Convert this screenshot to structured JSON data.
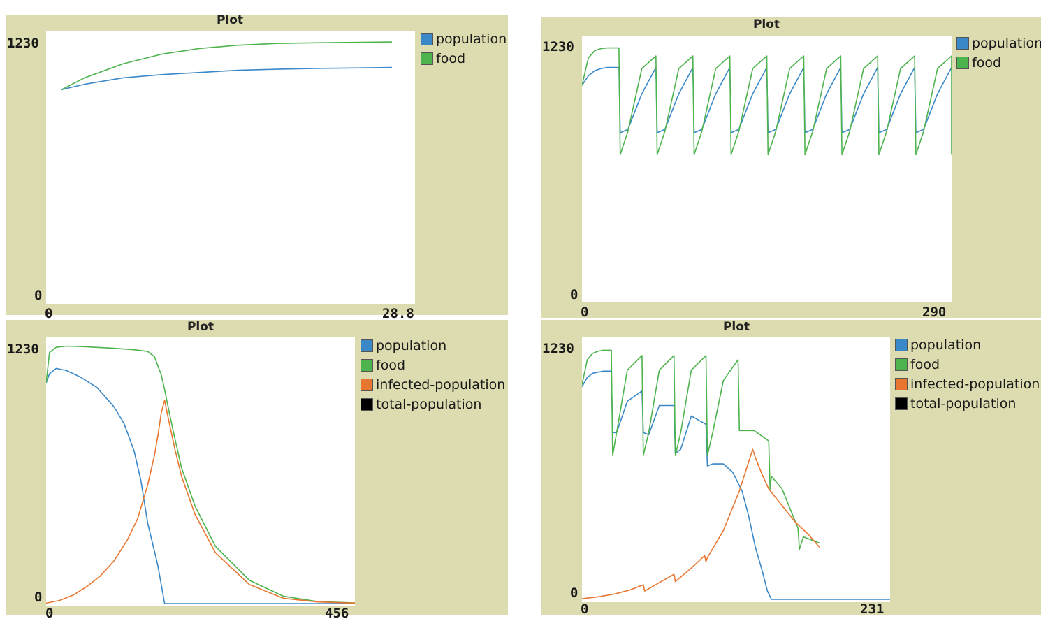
{
  "chart_data": [
    {
      "type": "line",
      "title": "Plot",
      "ylim": [
        0,
        1230
      ],
      "xlim": [
        0,
        28.8
      ],
      "ytick_labels": [
        "1230",
        "0"
      ],
      "xtick_labels": [
        "0",
        "28.8"
      ],
      "legend": "right",
      "series": [
        {
          "name": "population",
          "color": "#3a88c8",
          "x": [
            1.2,
            3,
            6,
            9,
            12,
            15,
            18,
            21,
            24,
            27
          ],
          "y": [
            985,
            1010,
            1040,
            1055,
            1065,
            1075,
            1080,
            1084,
            1086,
            1088
          ]
        },
        {
          "name": "food",
          "color": "#4db34d",
          "x": [
            1.2,
            3,
            6,
            9,
            12,
            15,
            18,
            21,
            24,
            27
          ],
          "y": [
            985,
            1040,
            1105,
            1150,
            1177,
            1192,
            1200,
            1203,
            1205,
            1207
          ]
        }
      ]
    },
    {
      "type": "line",
      "title": "Plot",
      "ylim": [
        0,
        1230
      ],
      "xlim": [
        0,
        290
      ],
      "ytick_labels": [
        "1230",
        "0"
      ],
      "xtick_labels": [
        "0",
        "290"
      ],
      "legend": "right",
      "series": [
        {
          "name": "population",
          "color": "#3a88c8",
          "x": [
            0,
            5,
            10,
            15,
            20,
            29,
            30,
            36,
            47,
            58,
            59,
            65,
            76,
            87,
            88,
            94,
            105,
            116,
            117,
            123,
            134,
            145,
            146,
            152,
            163,
            174,
            175,
            181,
            192,
            203,
            204,
            210,
            221,
            232,
            233,
            239,
            250,
            261,
            262,
            268,
            279,
            290
          ],
          "y": [
            1020,
            1065,
            1090,
            1100,
            1105,
            1105,
            795,
            810,
            980,
            1105,
            795,
            810,
            980,
            1105,
            795,
            810,
            980,
            1105,
            795,
            810,
            980,
            1105,
            795,
            810,
            980,
            1105,
            795,
            810,
            980,
            1105,
            795,
            810,
            980,
            1105,
            795,
            810,
            980,
            1105,
            795,
            810,
            980,
            1105
          ]
        },
        {
          "name": "food",
          "color": "#4db34d",
          "x": [
            0,
            5,
            10,
            15,
            20,
            29,
            30,
            36,
            47,
            58,
            59,
            65,
            76,
            87,
            88,
            94,
            105,
            116,
            117,
            123,
            134,
            145,
            146,
            152,
            163,
            174,
            175,
            181,
            192,
            203,
            204,
            210,
            221,
            232,
            233,
            239,
            250,
            261,
            262,
            268,
            279,
            290,
            290
          ],
          "y": [
            1020,
            1150,
            1185,
            1195,
            1198,
            1198,
            690,
            800,
            1100,
            1160,
            690,
            800,
            1100,
            1160,
            690,
            800,
            1100,
            1160,
            690,
            800,
            1100,
            1160,
            690,
            800,
            1100,
            1160,
            690,
            800,
            1100,
            1160,
            690,
            800,
            1100,
            1160,
            690,
            800,
            1100,
            1160,
            690,
            800,
            1100,
            1160,
            690
          ]
        }
      ]
    },
    {
      "type": "line",
      "title": "Plot",
      "ylim": [
        0,
        1230
      ],
      "xlim": [
        0,
        456
      ],
      "ytick_labels": [
        "1230",
        "0"
      ],
      "xtick_labels": [
        "0",
        "456"
      ],
      "legend": "right",
      "series": [
        {
          "name": "population",
          "color": "#3a88c8",
          "x": [
            0,
            5,
            15,
            30,
            50,
            75,
            100,
            115,
            130,
            140,
            150,
            165,
            175,
            456
          ],
          "y": [
            1040,
            1085,
            1110,
            1100,
            1070,
            1020,
            930,
            850,
            720,
            580,
            380,
            180,
            0,
            0
          ]
        },
        {
          "name": "food",
          "color": "#4db34d",
          "x": [
            0,
            5,
            15,
            30,
            60,
            100,
            130,
            150,
            160,
            170,
            175,
            182,
            190,
            200,
            220,
            250,
            300,
            350,
            400,
            456
          ],
          "y": [
            1040,
            1185,
            1210,
            1215,
            1212,
            1205,
            1198,
            1190,
            1165,
            1080,
            1010,
            900,
            780,
            640,
            460,
            270,
            110,
            35,
            10,
            3
          ]
        },
        {
          "name": "infected-population",
          "color": "#e87530",
          "x": [
            0,
            20,
            40,
            60,
            80,
            100,
            120,
            135,
            150,
            160,
            165,
            170,
            175,
            180,
            190,
            200,
            220,
            250,
            300,
            350,
            400,
            456
          ],
          "y": [
            2,
            15,
            40,
            80,
            130,
            200,
            300,
            400,
            560,
            700,
            790,
            900,
            960,
            880,
            730,
            600,
            420,
            240,
            90,
            25,
            8,
            2
          ]
        },
        {
          "name": "total-population",
          "color": "#000000",
          "x": [],
          "y": []
        }
      ]
    },
    {
      "type": "line",
      "title": "Plot",
      "ylim": [
        0,
        1230
      ],
      "xlim": [
        0,
        231
      ],
      "ytick_labels": [
        "1230",
        "0"
      ],
      "xtick_labels": [
        "0",
        "231"
      ],
      "legend": "right",
      "series": [
        {
          "name": "population",
          "color": "#3a88c8",
          "x": [
            0,
            4,
            8,
            12,
            16,
            22,
            23,
            26,
            34,
            45,
            46,
            50,
            58,
            69,
            70,
            74,
            82,
            93,
            94,
            98,
            106,
            113,
            120,
            125,
            130,
            135,
            139,
            142,
            231
          ],
          "y": [
            1020,
            1065,
            1085,
            1090,
            1095,
            1095,
            800,
            800,
            950,
            1000,
            800,
            790,
            930,
            930,
            700,
            720,
            880,
            840,
            640,
            650,
            650,
            610,
            520,
            400,
            250,
            140,
            40,
            0,
            0
          ]
        },
        {
          "name": "food",
          "color": "#4db34d",
          "x": [
            0,
            4,
            8,
            12,
            16,
            22,
            23,
            26,
            34,
            45,
            46,
            50,
            58,
            69,
            70,
            74,
            82,
            93,
            94,
            98,
            106,
            117,
            118,
            129,
            140,
            141,
            142,
            150,
            162,
            163,
            166,
            178
          ],
          "y": [
            1030,
            1150,
            1180,
            1190,
            1195,
            1195,
            690,
            800,
            1100,
            1170,
            690,
            800,
            1100,
            1170,
            690,
            800,
            1100,
            1170,
            690,
            800,
            1050,
            1150,
            810,
            810,
            760,
            530,
            590,
            530,
            340,
            240,
            300,
            270
          ]
        },
        {
          "name": "infected-population",
          "color": "#e87530",
          "x": [
            0,
            12,
            24,
            36,
            46,
            47,
            58,
            69,
            70,
            82,
            92,
            93,
            94,
            106,
            118,
            124,
            128,
            130,
            135,
            140,
            150,
            160,
            170,
            178
          ],
          "y": [
            3,
            12,
            25,
            45,
            70,
            40,
            80,
            120,
            85,
            150,
            210,
            180,
            200,
            330,
            520,
            640,
            720,
            680,
            600,
            530,
            450,
            370,
            310,
            250
          ]
        },
        {
          "name": "total-population",
          "color": "#000000",
          "x": [],
          "y": []
        }
      ]
    }
  ]
}
